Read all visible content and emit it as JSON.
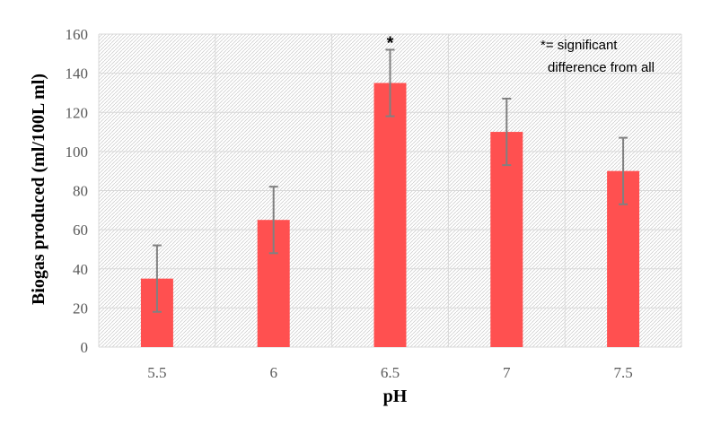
{
  "chart_data": {
    "type": "bar",
    "categories": [
      "5.5",
      "6",
      "6.5",
      "7",
      "7.5"
    ],
    "values": [
      35,
      65,
      135,
      110,
      90
    ],
    "errors": [
      17,
      17,
      17,
      17,
      17
    ],
    "significance_markers": [
      "",
      "",
      "*",
      "",
      ""
    ],
    "xlabel": "pH",
    "ylabel": "Biogas produced (ml/100L ml)",
    "ylim": [
      0,
      160
    ],
    "yticks": [
      "0",
      "20",
      "40",
      "60",
      "80",
      "100",
      "120",
      "140",
      "160"
    ],
    "annotation": [
      "*= significant",
      "difference from all"
    ],
    "grid": true,
    "colors": {
      "bar": "#ff5050",
      "error_bar": "#808080",
      "grid": "#d9d9d9",
      "hatch": "#c8c8c8"
    }
  }
}
